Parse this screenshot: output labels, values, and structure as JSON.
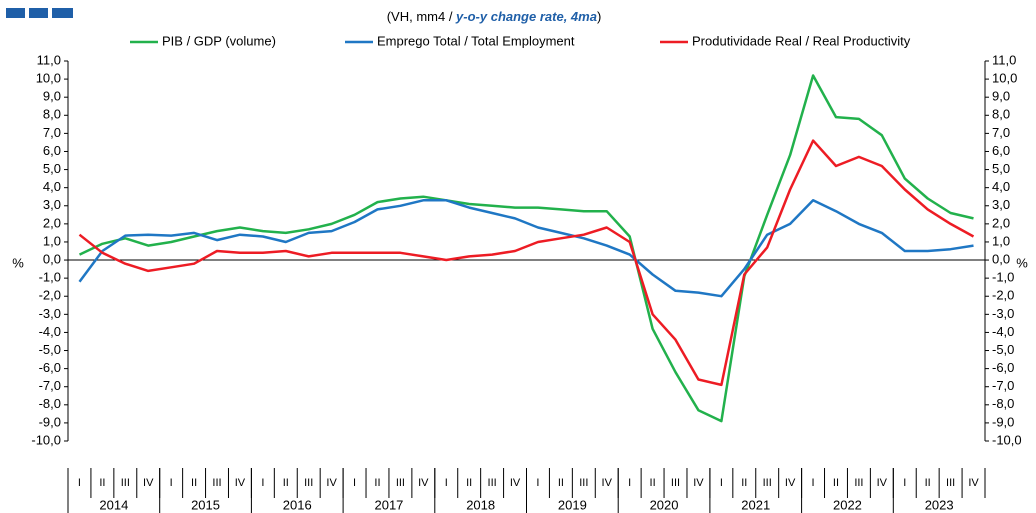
{
  "chart_data": {
    "type": "line",
    "subtitle": [
      "(VH, mm4 / ",
      "y-o-y change rate, 4ma",
      ")"
    ],
    "ylabel": "%",
    "years": [
      "2014",
      "2015",
      "2016",
      "2017",
      "2018",
      "2019",
      "2020",
      "2021",
      "2022",
      "2023"
    ],
    "categories": [
      "I",
      "II",
      "III",
      "IV",
      "I",
      "II",
      "III",
      "IV",
      "I",
      "II",
      "III",
      "IV",
      "I",
      "II",
      "III",
      "IV",
      "I",
      "II",
      "III",
      "IV",
      "I",
      "II",
      "III",
      "IV",
      "I",
      "II",
      "III",
      "IV",
      "I",
      "II",
      "III",
      "IV",
      "I",
      "II",
      "III",
      "IV",
      "I",
      "II",
      "III",
      "IV"
    ],
    "series": [
      {
        "name": "PIB / GDP (volume)",
        "color": "#22b14c",
        "values": [
          0.3,
          0.9,
          1.2,
          0.8,
          1.0,
          1.3,
          1.6,
          1.8,
          1.6,
          1.5,
          1.7,
          2.0,
          2.5,
          3.2,
          3.4,
          3.5,
          3.3,
          3.1,
          3.0,
          2.9,
          2.9,
          2.8,
          2.7,
          2.7,
          1.3,
          -3.8,
          -6.2,
          -8.3,
          -8.9,
          -0.9,
          2.5,
          5.8,
          10.2,
          7.9,
          7.8,
          6.9,
          4.5,
          3.4,
          2.6,
          2.3
        ]
      },
      {
        "name": "Emprego Total / Total Employment",
        "color": "#1f77c4",
        "values": [
          -1.2,
          0.5,
          1.35,
          1.4,
          1.35,
          1.5,
          1.1,
          1.4,
          1.3,
          1.0,
          1.5,
          1.6,
          2.1,
          2.8,
          3.0,
          3.3,
          3.3,
          2.9,
          2.6,
          2.3,
          1.8,
          1.5,
          1.2,
          0.8,
          0.3,
          -0.8,
          -1.7,
          -1.8,
          -2.0,
          -0.5,
          1.4,
          2.0,
          3.3,
          2.7,
          2.0,
          1.5,
          0.5,
          0.5,
          0.6,
          0.8
        ]
      },
      {
        "name": "Produtividade Real / Real Productivity",
        "color": "#ed1c24",
        "values": [
          1.4,
          0.4,
          -0.2,
          -0.6,
          -0.4,
          -0.2,
          0.5,
          0.4,
          0.4,
          0.5,
          0.2,
          0.4,
          0.4,
          0.4,
          0.4,
          0.2,
          0.0,
          0.2,
          0.3,
          0.5,
          1.0,
          1.2,
          1.4,
          1.8,
          1.0,
          -3.0,
          -4.4,
          -6.6,
          -6.9,
          -0.8,
          0.7,
          3.9,
          6.6,
          5.2,
          5.7,
          5.2,
          3.9,
          2.8,
          2.0,
          1.3
        ]
      }
    ],
    "ylim": [
      -10,
      11
    ],
    "yticks": [
      {
        "value": -10,
        "label": "-10,0"
      },
      {
        "value": -9,
        "label": "-9,0"
      },
      {
        "value": -8,
        "label": "-8,0"
      },
      {
        "value": -7,
        "label": "-7,0"
      },
      {
        "value": -6,
        "label": "-6,0"
      },
      {
        "value": -5,
        "label": "-5,0"
      },
      {
        "value": -4,
        "label": "-4,0"
      },
      {
        "value": -3,
        "label": "-3,0"
      },
      {
        "value": -2,
        "label": "-2,0"
      },
      {
        "value": -1,
        "label": "-1,0"
      },
      {
        "value": 0,
        "label": "0,0"
      },
      {
        "value": 1,
        "label": "1,0"
      },
      {
        "value": 2,
        "label": "2,0"
      },
      {
        "value": 3,
        "label": "3,0"
      },
      {
        "value": 4,
        "label": "4,0"
      },
      {
        "value": 5,
        "label": "5,0"
      },
      {
        "value": 6,
        "label": "6,0"
      },
      {
        "value": 7,
        "label": "7,0"
      },
      {
        "value": 8,
        "label": "8,0"
      },
      {
        "value": 9,
        "label": "9,0"
      },
      {
        "value": 10,
        "label": "10,0"
      },
      {
        "value": 11,
        "label": "11,0"
      }
    ]
  }
}
